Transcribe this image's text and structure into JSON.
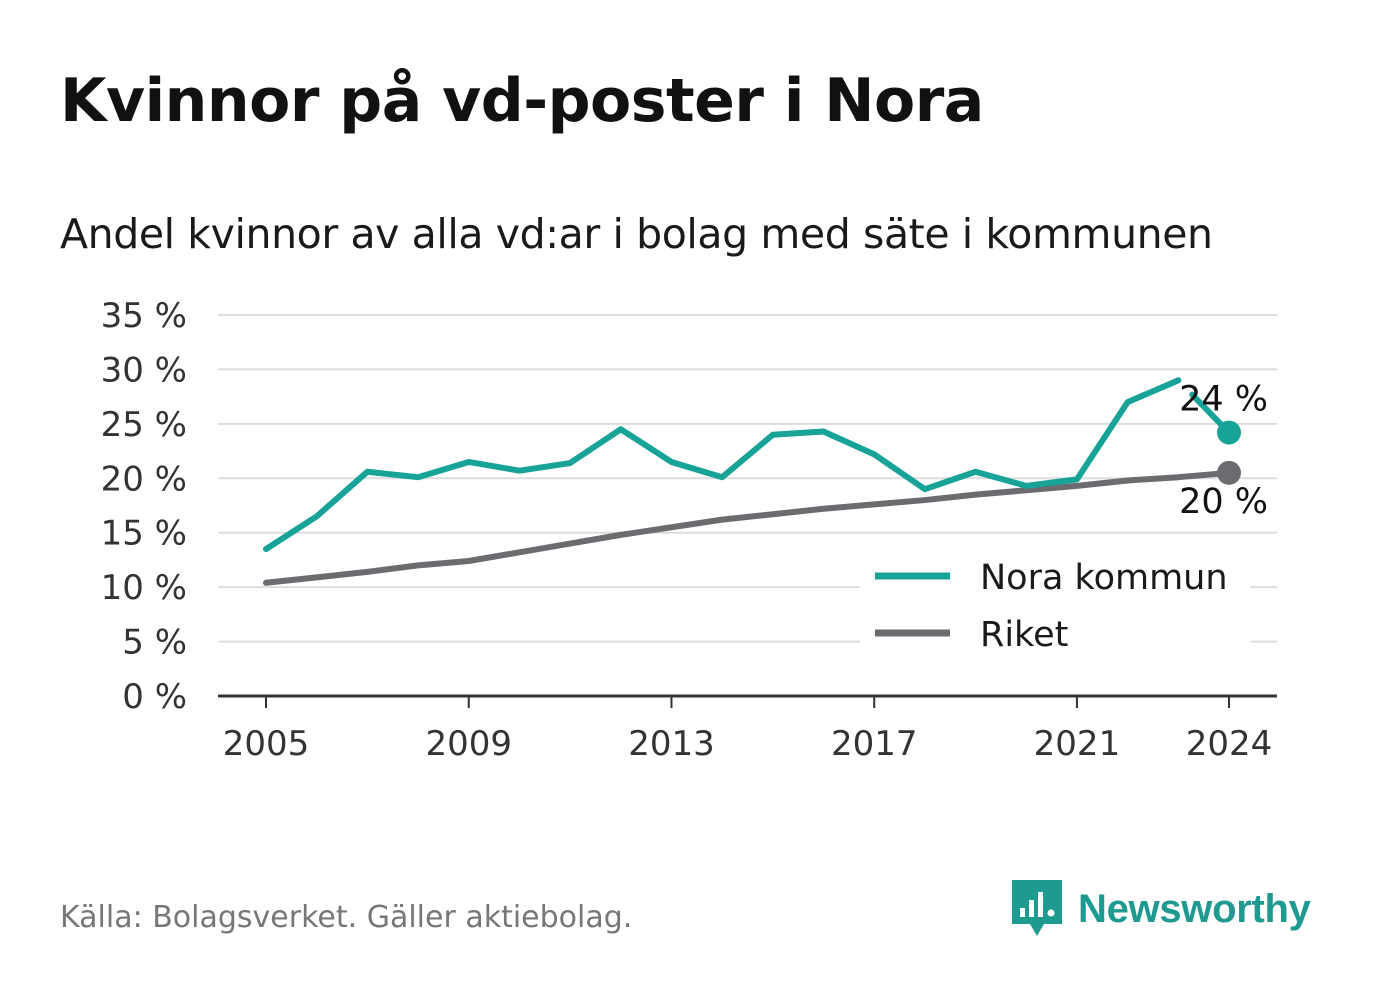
{
  "title": "Kvinnor på vd-poster i Nora",
  "subtitle": "Andel kvinnor av alla vd:ar i bolag med säte i kommunen",
  "source": "Källa: Bolagsverket. Gäller aktiebolag.",
  "brand": "Newsworthy",
  "colors": {
    "nora": "#17a398",
    "riket": "#6b6b70",
    "grid": "#dddddd",
    "axis": "#333333"
  },
  "chart_data": {
    "type": "line",
    "title": "Kvinnor på vd-poster i Nora",
    "subtitle": "Andel kvinnor av alla vd:ar i bolag med säte i kommunen",
    "x": [
      2005,
      2006,
      2007,
      2008,
      2009,
      2010,
      2011,
      2012,
      2013,
      2014,
      2015,
      2016,
      2017,
      2018,
      2019,
      2020,
      2021,
      2022,
      2023,
      2024
    ],
    "xticks": [
      "2005",
      "2009",
      "2013",
      "2017",
      "2021",
      "2024"
    ],
    "ylim": [
      0,
      35
    ],
    "yticks": [
      "0 %",
      "5 %",
      "10 %",
      "15 %",
      "20 %",
      "25 %",
      "30 %",
      "35 %"
    ],
    "grid": true,
    "legend_position": "bottom-right",
    "series": [
      {
        "name": "Nora kommun",
        "values": [
          13.5,
          16.5,
          20.6,
          20.1,
          21.5,
          20.7,
          21.4,
          24.5,
          21.5,
          20.1,
          24.0,
          24.3,
          22.2,
          19.0,
          20.6,
          19.3,
          19.9,
          27.0,
          29.0,
          24.2
        ],
        "end_label": "24 %"
      },
      {
        "name": "Riket",
        "values": [
          10.4,
          10.9,
          11.4,
          12.0,
          12.4,
          13.2,
          14.0,
          14.8,
          15.5,
          16.2,
          16.7,
          17.2,
          17.6,
          18.0,
          18.5,
          18.9,
          19.3,
          19.8,
          20.1,
          20.5
        ],
        "end_label": "20 %"
      }
    ]
  }
}
